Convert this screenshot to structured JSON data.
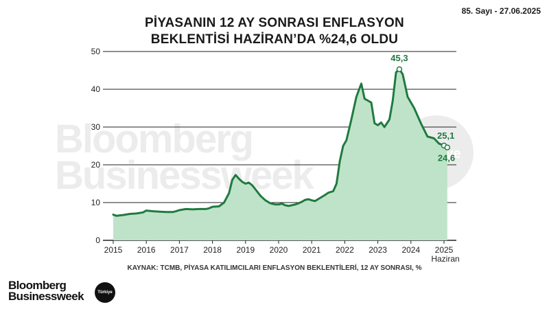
{
  "header": {
    "issue": "85. Sayı - 27.06.2025",
    "title_line1": "PİYASANIN 12 AY SONRASI ENFLASYON",
    "title_line2": "BEKLENTİSİ HAZİRAN’DA %24,6 OLDU"
  },
  "footer": {
    "source": "KAYNAK: TCMB, PİYASA KATILIMCILARI ENFLASYON BEKLENTİLERİ, 12 AY SONRASI, %",
    "brand_line1": "Bloomberg",
    "brand_line2": "Businessweek",
    "badge": "Türkiye"
  },
  "watermark": {
    "line1": "Bloomberg",
    "line2": "Businessweek",
    "badge": "Türkiye"
  },
  "chart_data": {
    "type": "area",
    "title": "PİYASANIN 12 AY SONRASI ENFLASYON BEKLENTİSİ HAZİRAN’DA %24,6 OLDU",
    "xlabel": "",
    "ylabel": "",
    "xlim": [
      2015.0,
      2025.5
    ],
    "ylim": [
      0,
      50
    ],
    "yticks": [
      0,
      10,
      20,
      30,
      40,
      50
    ],
    "xticks": [
      {
        "value": 2015,
        "label": "2015"
      },
      {
        "value": 2016,
        "label": "2016"
      },
      {
        "value": 2017,
        "label": "2017"
      },
      {
        "value": 2018,
        "label": "2018"
      },
      {
        "value": 2019,
        "label": "2019"
      },
      {
        "value": 2020,
        "label": "2020"
      },
      {
        "value": 2021,
        "label": "2021"
      },
      {
        "value": 2022,
        "label": "2022"
      },
      {
        "value": 2023,
        "label": "2023"
      },
      {
        "value": 2024,
        "label": "2024"
      },
      {
        "value": 2025,
        "label": "2025",
        "sublabel": "Haziran"
      }
    ],
    "grid": true,
    "colors": {
      "line": "#1f7a3f",
      "fill": "#bfe3c9",
      "grid": "#222222",
      "label": "#1f7a3f",
      "watermark": "#ececec"
    },
    "series": [
      {
        "points": [
          [
            2015.0,
            6.8
          ],
          [
            2015.1,
            6.5
          ],
          [
            2015.3,
            6.7
          ],
          [
            2015.5,
            7.0
          ],
          [
            2015.7,
            7.1
          ],
          [
            2015.9,
            7.4
          ],
          [
            2016.0,
            7.9
          ],
          [
            2016.2,
            7.7
          ],
          [
            2016.4,
            7.6
          ],
          [
            2016.6,
            7.5
          ],
          [
            2016.8,
            7.5
          ],
          [
            2016.9,
            7.7
          ],
          [
            2017.0,
            8.0
          ],
          [
            2017.2,
            8.3
          ],
          [
            2017.4,
            8.2
          ],
          [
            2017.6,
            8.3
          ],
          [
            2017.8,
            8.3
          ],
          [
            2017.9,
            8.5
          ],
          [
            2018.0,
            8.9
          ],
          [
            2018.2,
            9.0
          ],
          [
            2018.35,
            10.0
          ],
          [
            2018.5,
            12.5
          ],
          [
            2018.6,
            16.0
          ],
          [
            2018.7,
            17.3
          ],
          [
            2018.8,
            16.3
          ],
          [
            2018.9,
            15.5
          ],
          [
            2019.0,
            15.0
          ],
          [
            2019.1,
            15.3
          ],
          [
            2019.2,
            14.6
          ],
          [
            2019.3,
            13.5
          ],
          [
            2019.45,
            11.8
          ],
          [
            2019.6,
            10.6
          ],
          [
            2019.75,
            9.8
          ],
          [
            2019.9,
            9.5
          ],
          [
            2020.0,
            9.5
          ],
          [
            2020.1,
            9.7
          ],
          [
            2020.2,
            9.3
          ],
          [
            2020.3,
            9.1
          ],
          [
            2020.4,
            9.3
          ],
          [
            2020.5,
            9.5
          ],
          [
            2020.6,
            9.8
          ],
          [
            2020.7,
            10.2
          ],
          [
            2020.8,
            10.7
          ],
          [
            2020.9,
            10.9
          ],
          [
            2021.0,
            10.6
          ],
          [
            2021.1,
            10.4
          ],
          [
            2021.25,
            11.2
          ],
          [
            2021.4,
            12.0
          ],
          [
            2021.5,
            12.6
          ],
          [
            2021.65,
            13.0
          ],
          [
            2021.75,
            15.0
          ],
          [
            2021.85,
            21.0
          ],
          [
            2021.95,
            25.0
          ],
          [
            2022.05,
            26.5
          ],
          [
            2022.2,
            32.0
          ],
          [
            2022.35,
            38.0
          ],
          [
            2022.5,
            41.5
          ],
          [
            2022.6,
            37.5
          ],
          [
            2022.7,
            37.0
          ],
          [
            2022.8,
            36.5
          ],
          [
            2022.9,
            31.0
          ],
          [
            2023.0,
            30.5
          ],
          [
            2023.1,
            31.2
          ],
          [
            2023.2,
            30.0
          ],
          [
            2023.35,
            32.0
          ],
          [
            2023.45,
            37.0
          ],
          [
            2023.55,
            44.5
          ],
          [
            2023.65,
            45.3
          ],
          [
            2023.75,
            44.0
          ],
          [
            2023.9,
            38.0
          ],
          [
            2024.1,
            35.0
          ],
          [
            2024.3,
            31.0
          ],
          [
            2024.5,
            27.5
          ],
          [
            2024.7,
            27.0
          ],
          [
            2024.85,
            25.6
          ],
          [
            2025.0,
            25.1
          ],
          [
            2025.1,
            24.6
          ]
        ]
      }
    ],
    "annotations": [
      {
        "x": 2023.65,
        "y": 45.3,
        "label": "45,3",
        "pos": "above"
      },
      {
        "x": 2025.0,
        "y": 25.1,
        "label": "25,1",
        "pos": "above-right"
      },
      {
        "x": 2025.1,
        "y": 24.6,
        "label": "24,6",
        "pos": "below-right"
      }
    ]
  }
}
